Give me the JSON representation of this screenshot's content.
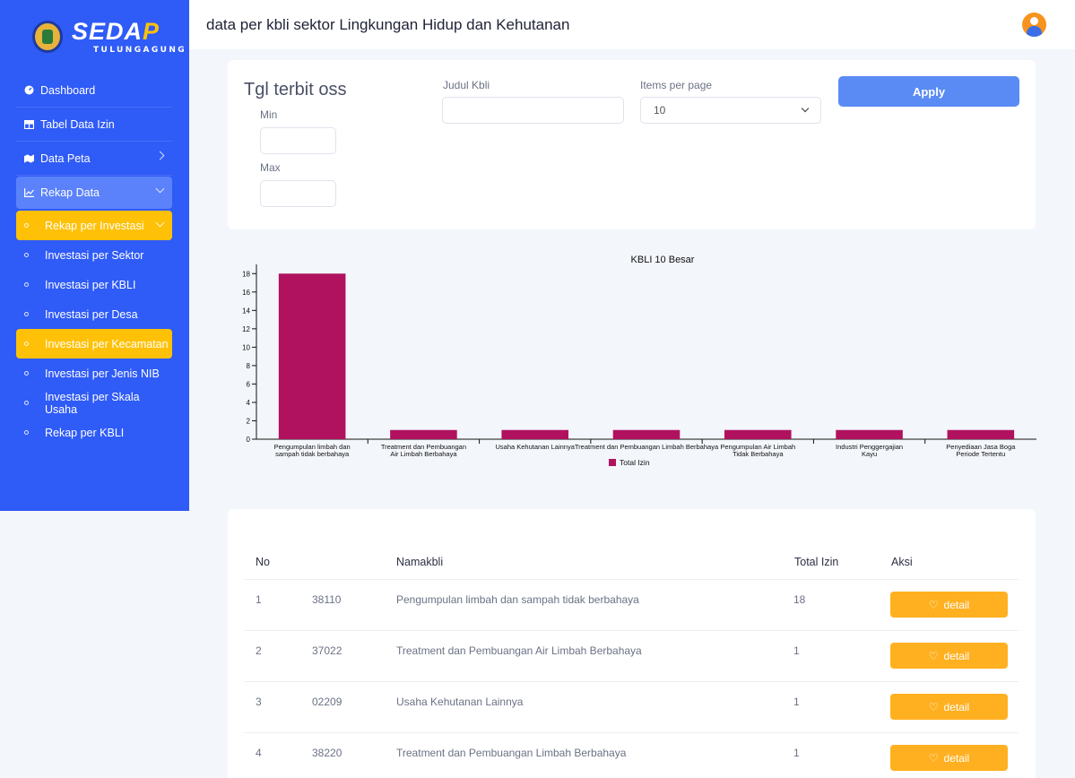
{
  "brand": {
    "name": "SEDAP",
    "sub": "TULUNGAGUNG"
  },
  "header": {
    "title": "data per kbli sektor Lingkungan Hidup dan Kehutanan"
  },
  "sidebar": {
    "items": [
      {
        "label": "Dashboard",
        "icon": "dashboard-icon"
      },
      {
        "label": "Tabel Data Izin",
        "icon": "table-icon"
      },
      {
        "label": "Data Peta",
        "icon": "map-icon"
      },
      {
        "label": "Rekap Data",
        "icon": "chart-line-icon"
      }
    ],
    "subitems": [
      {
        "label": "Rekap per Investasi"
      },
      {
        "label": "Investasi per Sektor"
      },
      {
        "label": "Investasi per KBLI"
      },
      {
        "label": "Investasi per Desa"
      },
      {
        "label": "Investasi per Kecamatan"
      },
      {
        "label": "Investasi per Jenis NIB"
      },
      {
        "label": "Investasi per Skala Usaha"
      },
      {
        "label": "Rekap per KBLI"
      }
    ]
  },
  "filter": {
    "date_title": "Tgl terbit oss",
    "min_label": "Min",
    "max_label": "Max",
    "judul_label": "Judul Kbli",
    "items_label": "Items per page",
    "items_value": "10",
    "apply_label": "Apply"
  },
  "chart_data": {
    "type": "bar",
    "title": "KBLI 10 Besar",
    "categories": [
      [
        "Pengumpulan limbah dan",
        "sampah tidak berbahaya"
      ],
      [
        "Treatment dan Pembuangan",
        "Air Limbah Berbahaya"
      ],
      [
        "Usaha Kehutanan Lainnya"
      ],
      [
        "Treatment dan Pembuangan Limbah Berbahaya"
      ],
      [
        "Pengumpulan Air Limbah",
        "Tidak Berbahaya"
      ],
      [
        "Industri Penggergajian",
        "Kayu"
      ],
      [
        "Penyediaan Jasa Boga",
        "Periode Tertentu"
      ]
    ],
    "series": [
      {
        "name": "Total Izin",
        "values": [
          18,
          1,
          1,
          1,
          1,
          1,
          1
        ]
      }
    ],
    "ylim": [
      0,
      19
    ],
    "yticks": [
      0,
      2,
      4,
      6,
      8,
      10,
      12,
      14,
      16,
      18
    ],
    "color": "#b0125f",
    "legend": "bottom"
  },
  "table": {
    "headers": [
      "No",
      "Namakbli",
      "Total Izin",
      "Aksi"
    ],
    "detail_label": "detail",
    "rows": [
      {
        "no": "1",
        "code": "38110",
        "name": "Pengumpulan limbah dan sampah tidak berbahaya",
        "total": "18"
      },
      {
        "no": "2",
        "code": "37022",
        "name": "Treatment dan Pembuangan Air Limbah Berbahaya",
        "total": "1"
      },
      {
        "no": "3",
        "code": "02209",
        "name": "Usaha Kehutanan Lainnya",
        "total": "1"
      },
      {
        "no": "4",
        "code": "38220",
        "name": "Treatment dan Pembuangan Limbah Berbahaya",
        "total": "1"
      }
    ]
  }
}
